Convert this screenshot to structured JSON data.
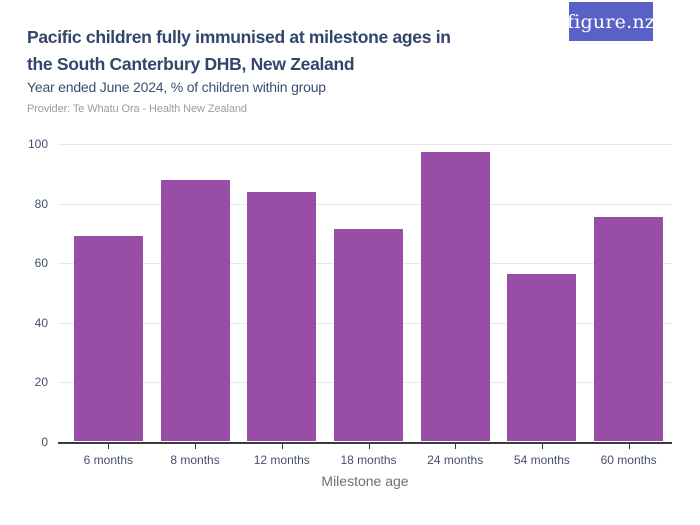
{
  "header": {
    "title_lines": [
      "Pacific children fully immunised at milestone ages in",
      "the South Canterbury DHB, New Zealand"
    ],
    "subtitle": "Year ended June 2024, % of children within group",
    "provider": "Provider: Te Whatu Ora - Health New Zealand",
    "logo_text": "figure.nz"
  },
  "colors": {
    "bar": "#984EA7",
    "title": "#32466B",
    "subtitle": "#3A4F70",
    "provider": "#9C9DA1",
    "axis_label": "#44506B",
    "axis_title": "#6B717C",
    "gridline": "#E9E9EB",
    "axis_line": "#3B3B3B",
    "logo_background": "#5A61C6",
    "logo_text": "#FFFFFF"
  },
  "chart_data": {
    "type": "bar",
    "categories": [
      "6 months",
      "8 months",
      "12 months",
      "18 months",
      "24 months",
      "54 months",
      "60 months"
    ],
    "values": [
      69.2,
      87.8,
      83.7,
      71.4,
      97.3,
      56.2,
      75.5
    ],
    "title": "Pacific children fully immunised at milestone ages in the South Canterbury DHB, New Zealand",
    "subtitle": "Year ended June 2024, % of children within group",
    "xlabel": "Milestone age",
    "ylabel": "",
    "ylim": [
      0,
      100
    ],
    "yticks": [
      0,
      20,
      40,
      60,
      80,
      100
    ],
    "grid": "horizontal",
    "legend": "none",
    "bar_color": "#984EA7"
  }
}
